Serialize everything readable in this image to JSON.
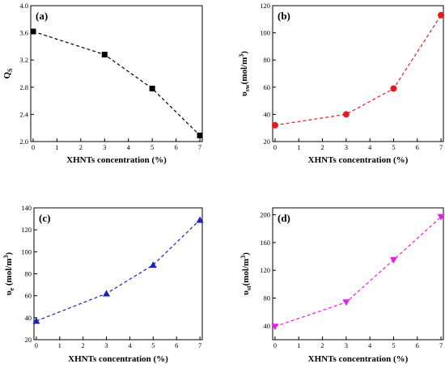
{
  "chart_data": [
    {
      "type": "line",
      "panel_label": "(a)",
      "xlabel": "XHNTs concentration (%)",
      "ylabel": "Qs",
      "ylabel_main": "Q",
      "ylabel_sub": "S",
      "ylabel_sup": "",
      "xlim": [
        -0.1,
        7.1
      ],
      "ylim": [
        2.0,
        4.0
      ],
      "xticks": [
        0,
        1,
        2,
        3,
        4,
        5,
        6,
        7
      ],
      "yticks": [
        2.0,
        2.4,
        2.8,
        3.2,
        3.6,
        4.0
      ],
      "ytick_decimals": 1,
      "grid": false,
      "series": [
        {
          "x": [
            0,
            3,
            5,
            7
          ],
          "y": [
            3.62,
            3.28,
            2.78,
            2.09
          ],
          "color": "#000000",
          "marker": "square"
        }
      ]
    },
    {
      "type": "line",
      "panel_label": "(b)",
      "xlabel": "XHNTs concentration (%)",
      "ylabel": "υsw(mol/m3)",
      "ylabel_main": "υ",
      "ylabel_sub": "sw",
      "ylabel_sup": "(mol/m3)",
      "xlim": [
        -0.1,
        7.1
      ],
      "ylim": [
        20,
        120
      ],
      "xticks": [
        0,
        1,
        2,
        3,
        4,
        5,
        6,
        7
      ],
      "yticks": [
        20,
        40,
        60,
        80,
        100,
        120
      ],
      "ytick_decimals": 0,
      "grid": false,
      "series": [
        {
          "x": [
            0,
            3,
            5,
            7
          ],
          "y": [
            32,
            40,
            59,
            113
          ],
          "color": "#e41a1c",
          "marker": "circle"
        }
      ]
    },
    {
      "type": "line",
      "panel_label": "(c)",
      "xlabel": "XHNTs concentration (%)",
      "ylabel": "υe (mol/m3)",
      "ylabel_main": "υ",
      "ylabel_sub": "e",
      "ylabel_sup": " (mol/m3)",
      "xlim": [
        -0.1,
        7.1
      ],
      "ylim": [
        20,
        140
      ],
      "xticks": [
        0,
        1,
        2,
        3,
        4,
        5,
        6,
        7
      ],
      "yticks": [
        20,
        40,
        60,
        80,
        100,
        120,
        140
      ],
      "ytick_decimals": 0,
      "grid": false,
      "series": [
        {
          "x": [
            0,
            3,
            5,
            7
          ],
          "y": [
            37,
            62,
            88,
            129
          ],
          "color": "#1f1fbf",
          "marker": "triangle-up"
        }
      ]
    },
    {
      "type": "line",
      "panel_label": "(d)",
      "xlabel": "XHNTs concentration (%)",
      "ylabel": "υst(mol/m3)",
      "ylabel_main": "υ",
      "ylabel_sub": "st",
      "ylabel_sup": "(mol/m3)",
      "xlim": [
        -0.1,
        7.1
      ],
      "ylim": [
        20,
        210
      ],
      "xticks": [
        0,
        1,
        2,
        3,
        4,
        5,
        6,
        7
      ],
      "yticks": [
        40,
        80,
        120,
        160,
        200
      ],
      "ytick_decimals": 0,
      "grid": false,
      "series": [
        {
          "x": [
            0,
            3,
            5,
            7
          ],
          "y": [
            39,
            74,
            135,
            197
          ],
          "color": "#e61ee6",
          "marker": "triangle-down"
        }
      ]
    }
  ]
}
